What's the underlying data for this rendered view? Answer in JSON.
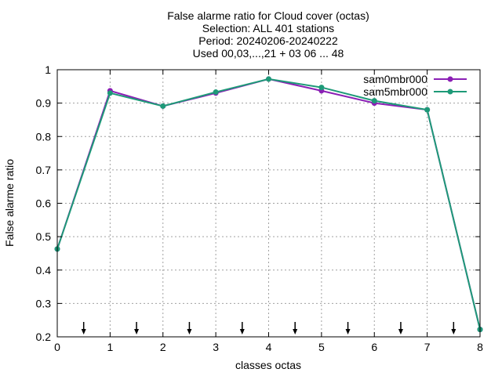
{
  "chart_data": {
    "type": "line",
    "title_lines": [
      "False alarme ratio  for Cloud cover (octas)",
      "Selection: ALL    401 stations",
      "Period: 20240206-20240222",
      "Used 00,03,...,21 + 03 06 ... 48"
    ],
    "xlabel": "classes octas",
    "ylabel": "False alarme ratio",
    "xlim": [
      0,
      8
    ],
    "ylim": [
      0.2,
      1.0
    ],
    "xticks": [
      0,
      1,
      2,
      3,
      4,
      5,
      6,
      7,
      8
    ],
    "yticks": [
      0.2,
      0.3,
      0.4,
      0.5,
      0.6,
      0.7,
      0.8,
      0.9,
      1.0
    ],
    "ytick_labels": [
      "0.2",
      "0.3",
      "0.4",
      "0.5",
      "0.6",
      "0.7",
      "0.8",
      "0.9",
      "1"
    ],
    "grid": true,
    "legend_position": "top-right",
    "x": [
      0,
      1,
      2,
      3,
      4,
      5,
      6,
      7,
      8
    ],
    "series": [
      {
        "name": "sam0mbr000",
        "color": "#8b1fb5",
        "values": [
          0.463,
          0.937,
          0.891,
          0.93,
          0.972,
          0.937,
          0.9,
          0.88,
          0.222
        ]
      },
      {
        "name": "sam5mbr000",
        "color": "#1e9a78",
        "values": [
          0.463,
          0.93,
          0.891,
          0.933,
          0.972,
          0.947,
          0.907,
          0.88,
          0.222
        ]
      }
    ],
    "arrows_at_x": [
      0.5,
      1.5,
      2.5,
      3.5,
      4.5,
      5.5,
      6.5,
      7.5
    ]
  }
}
